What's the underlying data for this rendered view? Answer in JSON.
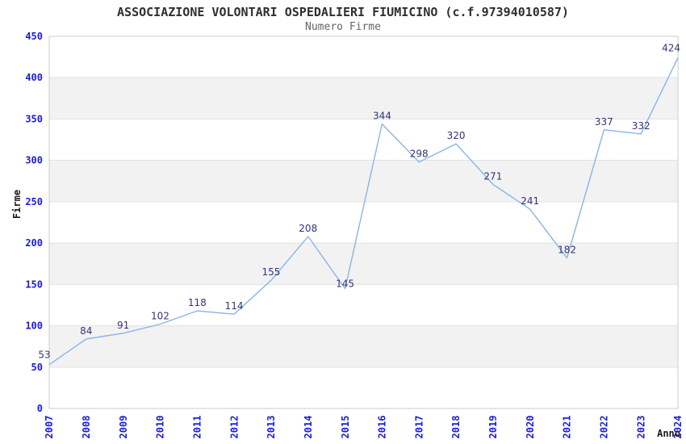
{
  "chart_data": {
    "type": "line",
    "title": "ASSOCIAZIONE VOLONTARI OSPEDALIERI FIUMICINO (c.f.97394010587)",
    "subtitle": "Numero Firme",
    "x": [
      "2007",
      "2008",
      "2009",
      "2010",
      "2011",
      "2012",
      "2013",
      "2014",
      "2015",
      "2016",
      "2017",
      "2018",
      "2019",
      "2020",
      "2021",
      "2022",
      "2023",
      "2024"
    ],
    "values": [
      53,
      84,
      91,
      102,
      118,
      114,
      155,
      208,
      145,
      344,
      298,
      320,
      271,
      241,
      182,
      337,
      332,
      424
    ],
    "xlabel": "Anno",
    "ylabel": "Firme",
    "ylim": [
      0,
      450
    ],
    "ytick_step": 50,
    "yticks": [
      0,
      50,
      100,
      150,
      200,
      250,
      300,
      350,
      400,
      450
    ],
    "grid": true,
    "alternating_bands": true,
    "legend": null,
    "point_labels_shown": true,
    "colors": {
      "line": "#88b5e8",
      "tick_label": "#1c1cdd",
      "data_label": "#33337a",
      "band": "#f2f2f2",
      "gridline": "#e3e3e3",
      "plot_border": "#cccccc",
      "title": "#2f2f2f",
      "subtitle": "#666666",
      "axis_title": "#1a1a1a",
      "background": "#ffffff"
    }
  }
}
